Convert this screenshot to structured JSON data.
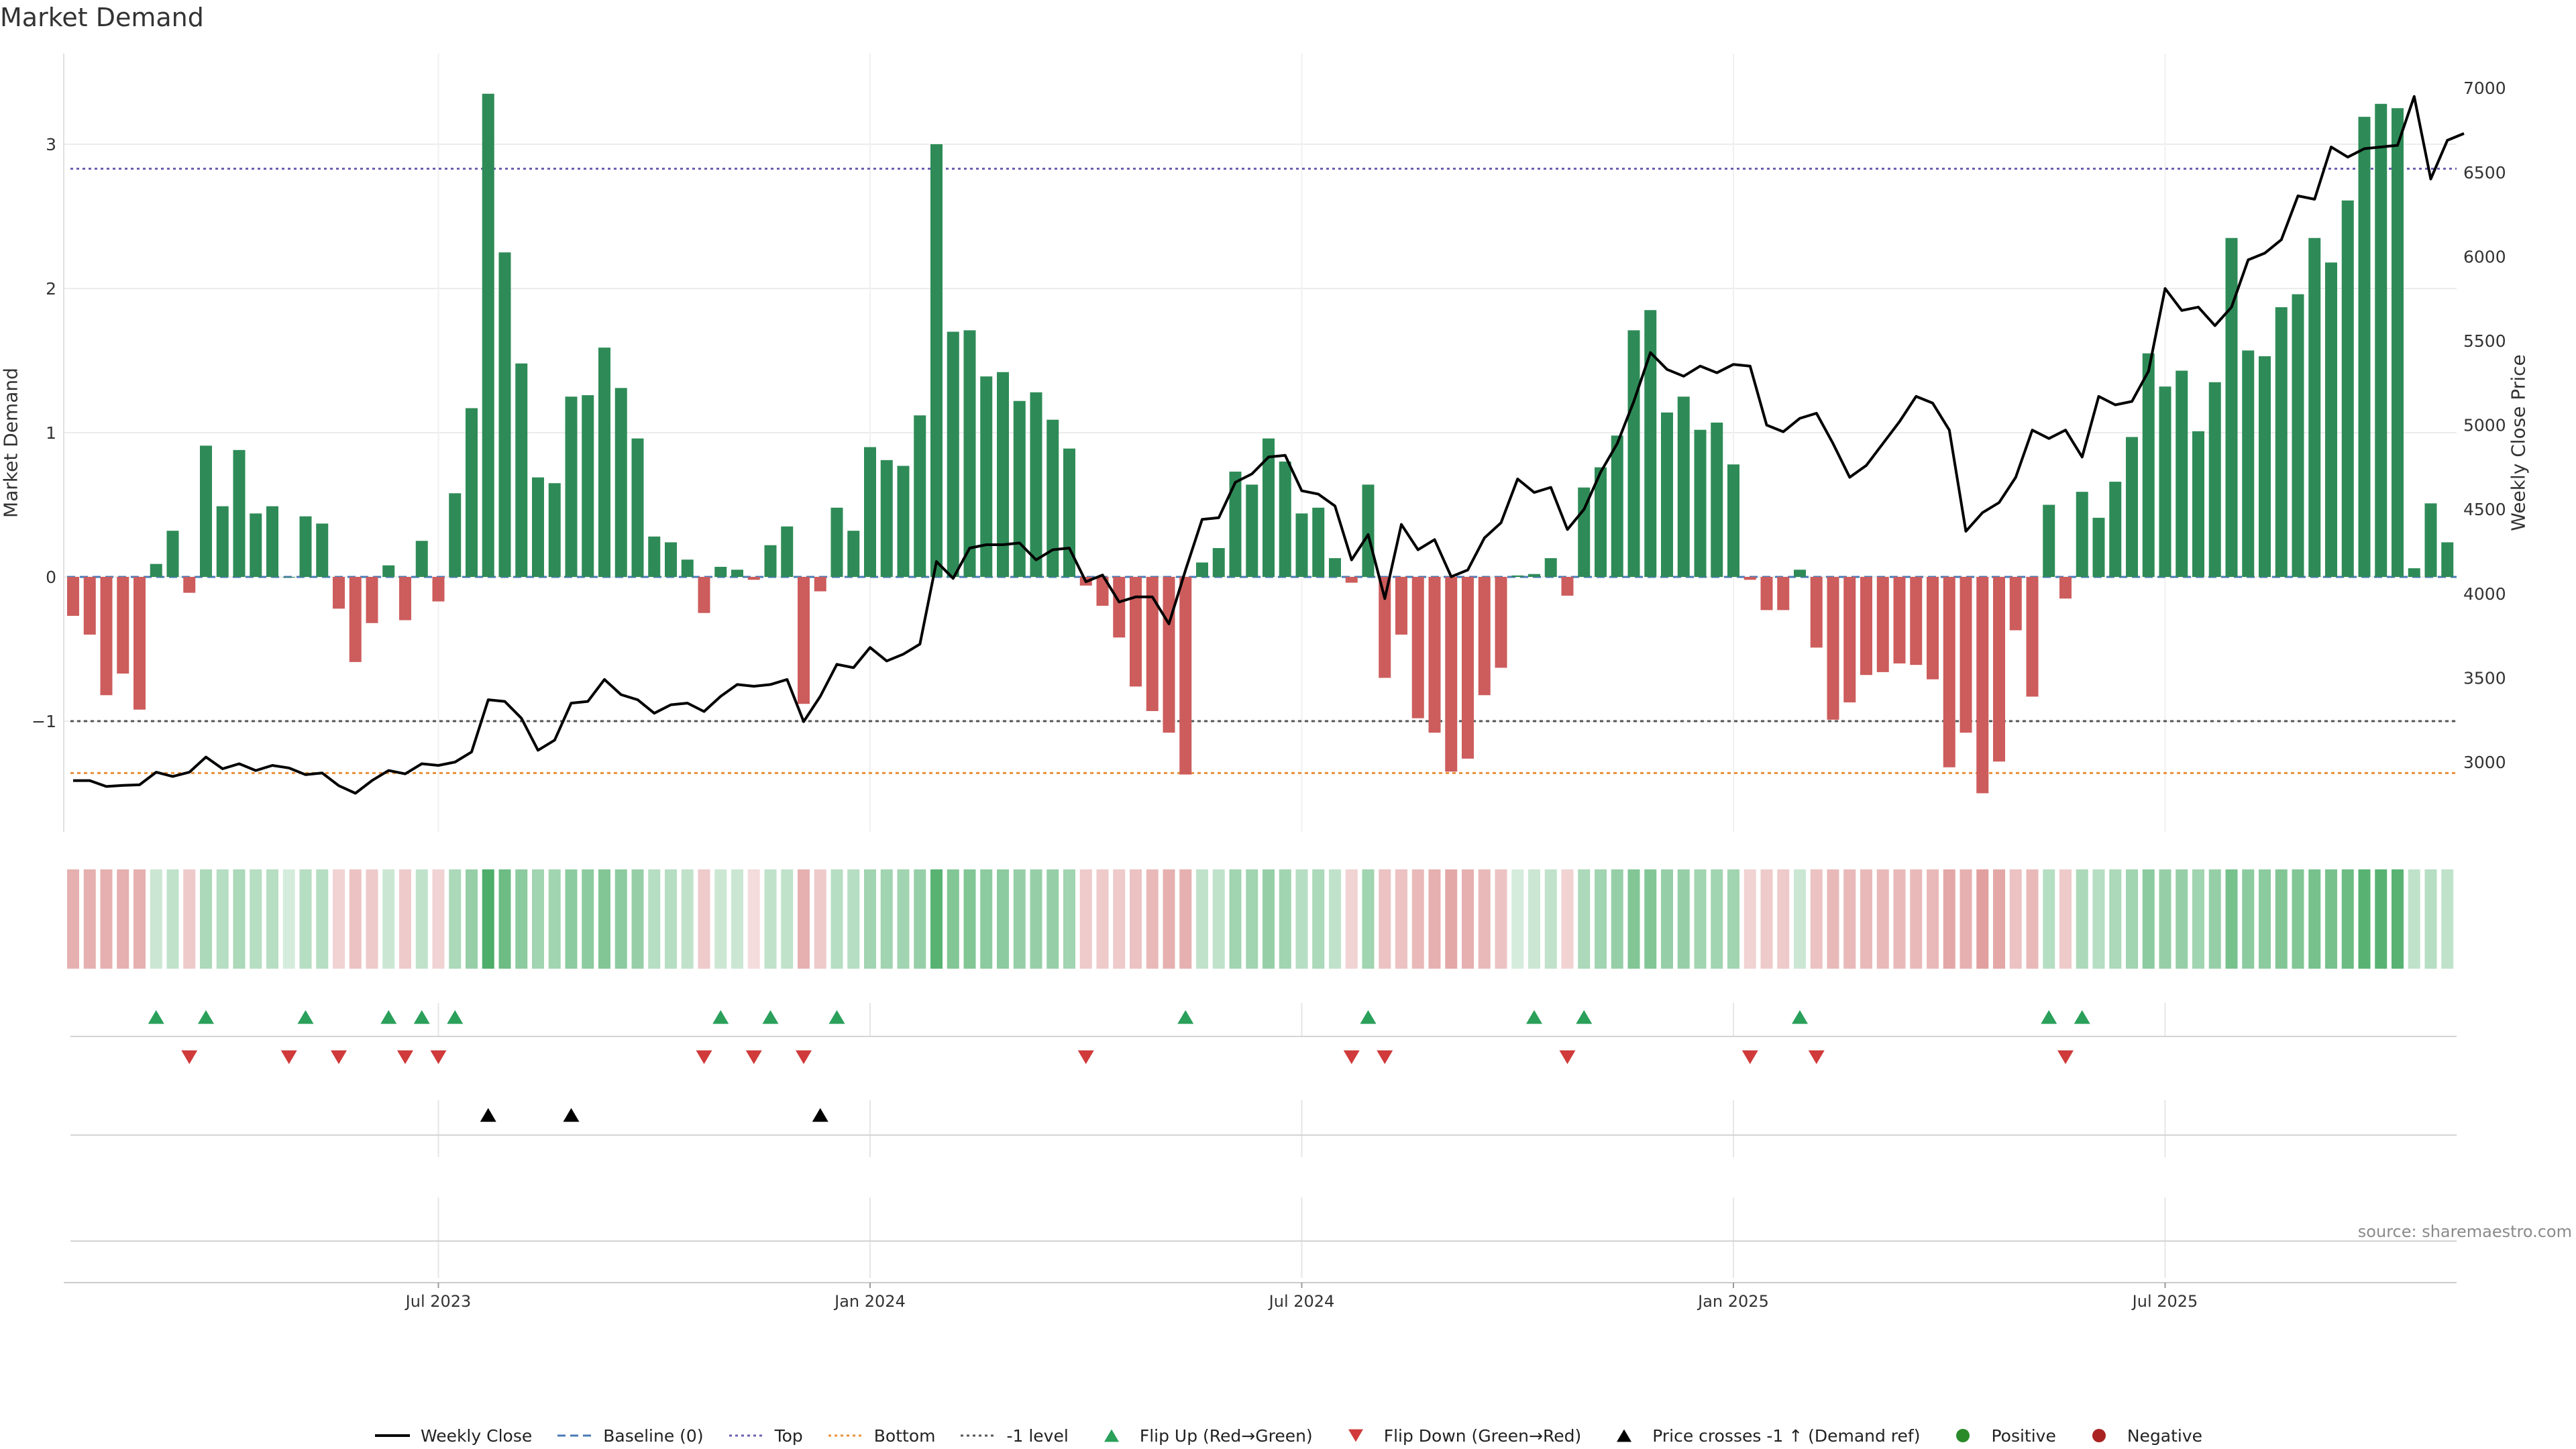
{
  "page": {
    "title": "Market Demand",
    "source": "source: sharemaestro.com"
  },
  "legend": [
    {
      "key": "weekly_close",
      "label": "Weekly Close",
      "symbol": "line",
      "color": "#000000"
    },
    {
      "key": "baseline",
      "label": "Baseline (0)",
      "symbol": "dash",
      "color": "#4a7ab5"
    },
    {
      "key": "top",
      "label": "Top",
      "symbol": "dot",
      "color": "#6b5fb0"
    },
    {
      "key": "bottom",
      "label": "Bottom",
      "symbol": "dot",
      "color": "#e8913a"
    },
    {
      "key": "minus1",
      "label": "-1 level",
      "symbol": "dot",
      "color": "#555555"
    },
    {
      "key": "flip_up",
      "label": "Flip Up (Red→Green)",
      "symbol": "tri-up",
      "color": "#2aa05a"
    },
    {
      "key": "flip_down",
      "label": "Flip Down (Green→Red)",
      "symbol": "tri-down",
      "color": "#d03a3a"
    },
    {
      "key": "price_cross",
      "label": "Price crosses -1 ↑ (Demand ref)",
      "symbol": "tri-up",
      "color": "#000000"
    },
    {
      "key": "positive",
      "label": "Positive",
      "symbol": "circle",
      "color": "#2a8a2a"
    },
    {
      "key": "negative",
      "label": "Negative",
      "symbol": "circle",
      "color": "#aa2222"
    }
  ],
  "chart_data": {
    "type": "bar",
    "title": "Market Demand",
    "ylabel": "Market Demand",
    "y2label": "Weekly Close Price",
    "ylim": [
      -1.8,
      3.6
    ],
    "y2lim": [
      2600,
      7100
    ],
    "yticks": [
      -1,
      0,
      1,
      2,
      3
    ],
    "yticklabels": [
      "−1",
      "0",
      "1",
      "2",
      "3"
    ],
    "y2ticks": [
      3000,
      3500,
      4000,
      4500,
      5000,
      5500,
      6000,
      6500,
      7000
    ],
    "xticks": [
      {
        "index": 22,
        "label": "Jul 2023"
      },
      {
        "index": 48,
        "label": "Jan 2024"
      },
      {
        "index": 74,
        "label": "Jul 2024"
      },
      {
        "index": 100,
        "label": "Jan 2025"
      },
      {
        "index": 126,
        "label": "Jul 2025"
      }
    ],
    "levels": {
      "top": 2.83,
      "bottom": -1.36,
      "minus1": -1.0,
      "baseline": 0
    },
    "colors": {
      "positive": "#2e8b57",
      "negative": "#cd5c5c",
      "line": "#000000",
      "up_marker": "#2aa05a",
      "down_marker": "#d03a3a",
      "cross_marker": "#000000"
    },
    "series": [
      {
        "name": "Market Demand",
        "values": [
          -0.27,
          -0.4,
          -0.82,
          -0.67,
          -0.92,
          0.09,
          0.32,
          -0.11,
          0.91,
          0.49,
          0.88,
          0.44,
          0.49,
          0.0,
          0.42,
          0.37,
          -0.22,
          -0.59,
          -0.32,
          0.08,
          -0.3,
          0.25,
          -0.17,
          0.58,
          1.17,
          3.35,
          2.25,
          1.48,
          0.69,
          0.65,
          1.25,
          1.26,
          1.59,
          1.31,
          0.96,
          0.28,
          0.24,
          0.12,
          -0.25,
          0.07,
          0.05,
          -0.02,
          0.22,
          0.35,
          -0.88,
          -0.1,
          0.48,
          0.32,
          0.9,
          0.81,
          0.77,
          1.12,
          3.0,
          1.7,
          1.71,
          1.39,
          1.42,
          1.22,
          1.28,
          1.09,
          0.89,
          -0.06,
          -0.2,
          -0.42,
          -0.76,
          -0.93,
          -1.08,
          -1.37,
          0.1,
          0.2,
          0.73,
          0.64,
          0.96,
          0.8,
          0.44,
          0.48,
          0.13,
          -0.04,
          0.64,
          -0.7,
          -0.4,
          -0.98,
          -1.08,
          -1.35,
          -1.26,
          -0.82,
          -0.63,
          0.01,
          0.02,
          0.13,
          -0.13,
          0.62,
          0.76,
          0.98,
          1.71,
          1.85,
          1.14,
          1.25,
          1.02,
          1.07,
          0.78,
          -0.02,
          -0.23,
          -0.23,
          0.05,
          -0.49,
          -0.99,
          -0.87,
          -0.68,
          -0.66,
          -0.6,
          -0.61,
          -0.71,
          -1.32,
          -1.08,
          -1.5,
          -1.28,
          -0.37,
          -0.83,
          0.5,
          -0.15,
          0.59,
          0.41,
          0.66,
          0.97,
          1.55,
          1.32,
          1.43,
          1.01,
          1.35,
          2.35,
          1.57,
          1.53,
          1.87,
          1.96,
          2.35,
          2.18,
          2.61,
          3.19,
          3.28,
          3.25,
          0.06,
          0.51,
          0.24
        ]
      },
      {
        "name": "Weekly Close",
        "axis": "right",
        "values": [
          2890,
          2890,
          2855,
          2862,
          2865,
          2940,
          2915,
          2940,
          3030,
          2960,
          2990,
          2950,
          2980,
          2965,
          2925,
          2935,
          2860,
          2815,
          2890,
          2950,
          2930,
          2990,
          2980,
          3000,
          3060,
          3370,
          3360,
          3260,
          3070,
          3130,
          3350,
          3360,
          3490,
          3400,
          3370,
          3290,
          3340,
          3350,
          3300,
          3390,
          3460,
          3450,
          3460,
          3490,
          3240,
          3390,
          3580,
          3560,
          3680,
          3600,
          3640,
          3700,
          4190,
          4090,
          4270,
          4290,
          4290,
          4300,
          4200,
          4260,
          4270,
          4070,
          4110,
          3950,
          3980,
          3980,
          3820,
          4140,
          4440,
          4450,
          4660,
          4710,
          4810,
          4820,
          4610,
          4590,
          4520,
          4200,
          4350,
          3970,
          4410,
          4260,
          4320,
          4100,
          4140,
          4330,
          4420,
          4680,
          4600,
          4630,
          4380,
          4500,
          4720,
          4890,
          5140,
          5430,
          5330,
          5290,
          5350,
          5310,
          5360,
          5350,
          5000,
          4960,
          5040,
          5070,
          4890,
          4690,
          4760,
          4890,
          5020,
          5170,
          5130,
          4970,
          4370,
          4480,
          4540,
          4690,
          4970,
          4920,
          4970,
          4810,
          5170,
          5120,
          5140,
          5320,
          5810,
          5680,
          5700,
          5590,
          5700,
          5980,
          6020,
          6100,
          6360,
          6340,
          6650,
          6590,
          6640,
          6650,
          6660,
          6950,
          6460,
          6690,
          6730
        ]
      }
    ],
    "strip_intensity": [
      0.45,
      0.45,
      0.45,
      0.45,
      0.45,
      0.25,
      0.3,
      0.3,
      0.4,
      0.35,
      0.4,
      0.35,
      0.35,
      0.2,
      0.35,
      0.35,
      0.25,
      0.35,
      0.3,
      0.25,
      0.3,
      0.3,
      0.25,
      0.4,
      0.5,
      0.85,
      0.7,
      0.55,
      0.45,
      0.45,
      0.55,
      0.55,
      0.6,
      0.55,
      0.5,
      0.35,
      0.35,
      0.3,
      0.3,
      0.25,
      0.25,
      0.2,
      0.3,
      0.3,
      0.45,
      0.3,
      0.35,
      0.35,
      0.45,
      0.45,
      0.45,
      0.5,
      0.8,
      0.6,
      0.6,
      0.55,
      0.55,
      0.5,
      0.5,
      0.5,
      0.45,
      0.3,
      0.3,
      0.3,
      0.35,
      0.4,
      0.45,
      0.45,
      0.3,
      0.3,
      0.45,
      0.45,
      0.5,
      0.45,
      0.35,
      0.4,
      0.3,
      0.25,
      0.45,
      0.35,
      0.35,
      0.4,
      0.45,
      0.5,
      0.45,
      0.4,
      0.35,
      0.2,
      0.25,
      0.3,
      0.25,
      0.4,
      0.45,
      0.5,
      0.6,
      0.6,
      0.5,
      0.5,
      0.45,
      0.45,
      0.45,
      0.25,
      0.3,
      0.3,
      0.25,
      0.35,
      0.4,
      0.4,
      0.4,
      0.4,
      0.4,
      0.4,
      0.4,
      0.5,
      0.45,
      0.55,
      0.5,
      0.35,
      0.4,
      0.35,
      0.3,
      0.4,
      0.35,
      0.4,
      0.45,
      0.55,
      0.5,
      0.5,
      0.45,
      0.5,
      0.65,
      0.55,
      0.55,
      0.6,
      0.6,
      0.65,
      0.65,
      0.7,
      0.8,
      0.8,
      0.8,
      0.3,
      0.35,
      0.3
    ],
    "flip_up": [
      5,
      8,
      14,
      19,
      21,
      23,
      39,
      42,
      46,
      67,
      78,
      88,
      91,
      104,
      119,
      121
    ],
    "flip_down": [
      7,
      13,
      16,
      20,
      22,
      38,
      41,
      44,
      61,
      77,
      79,
      90,
      101,
      105,
      120
    ],
    "price_cross": [
      25,
      30,
      45
    ]
  }
}
